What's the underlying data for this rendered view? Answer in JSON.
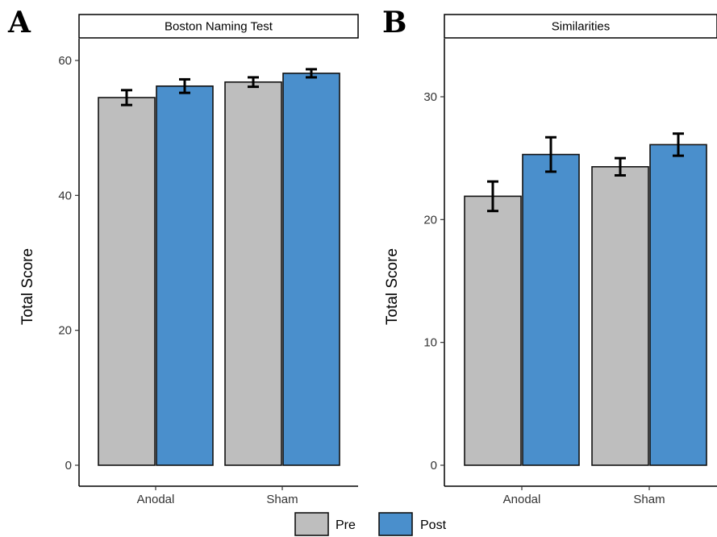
{
  "chart_data": [
    {
      "panel_label": "A",
      "type": "bar",
      "title": "Boston Naming Test",
      "ylabel": "Total Score",
      "xlabel": "",
      "categories": [
        "Anodal",
        "Sham"
      ],
      "ylim": [
        0,
        60
      ],
      "yticks": [
        0,
        20,
        40,
        60
      ],
      "series": [
        {
          "name": "Pre",
          "color": "#BEBEBE",
          "values": [
            54.5,
            56.8
          ],
          "error": [
            1.1,
            0.7
          ]
        },
        {
          "name": "Post",
          "color": "#4A8FCC",
          "values": [
            56.2,
            58.1
          ],
          "error": [
            1.0,
            0.6
          ]
        }
      ]
    },
    {
      "panel_label": "B",
      "type": "bar",
      "title": "Similarities",
      "ylabel": "Total Score",
      "xlabel": "",
      "categories": [
        "Anodal",
        "Sham"
      ],
      "ylim": [
        0,
        30
      ],
      "yticks": [
        0,
        10,
        20,
        30
      ],
      "series": [
        {
          "name": "Pre",
          "color": "#BEBEBE",
          "values": [
            21.9,
            24.3
          ],
          "error": [
            1.2,
            0.7
          ]
        },
        {
          "name": "Post",
          "color": "#4A8FCC",
          "values": [
            25.3,
            26.1
          ],
          "error": [
            1.4,
            0.9
          ]
        }
      ]
    }
  ],
  "legend": {
    "placement": "bottom-center",
    "items": [
      {
        "label": "Pre",
        "color": "#BEBEBE"
      },
      {
        "label": "Post",
        "color": "#4A8FCC"
      }
    ]
  }
}
